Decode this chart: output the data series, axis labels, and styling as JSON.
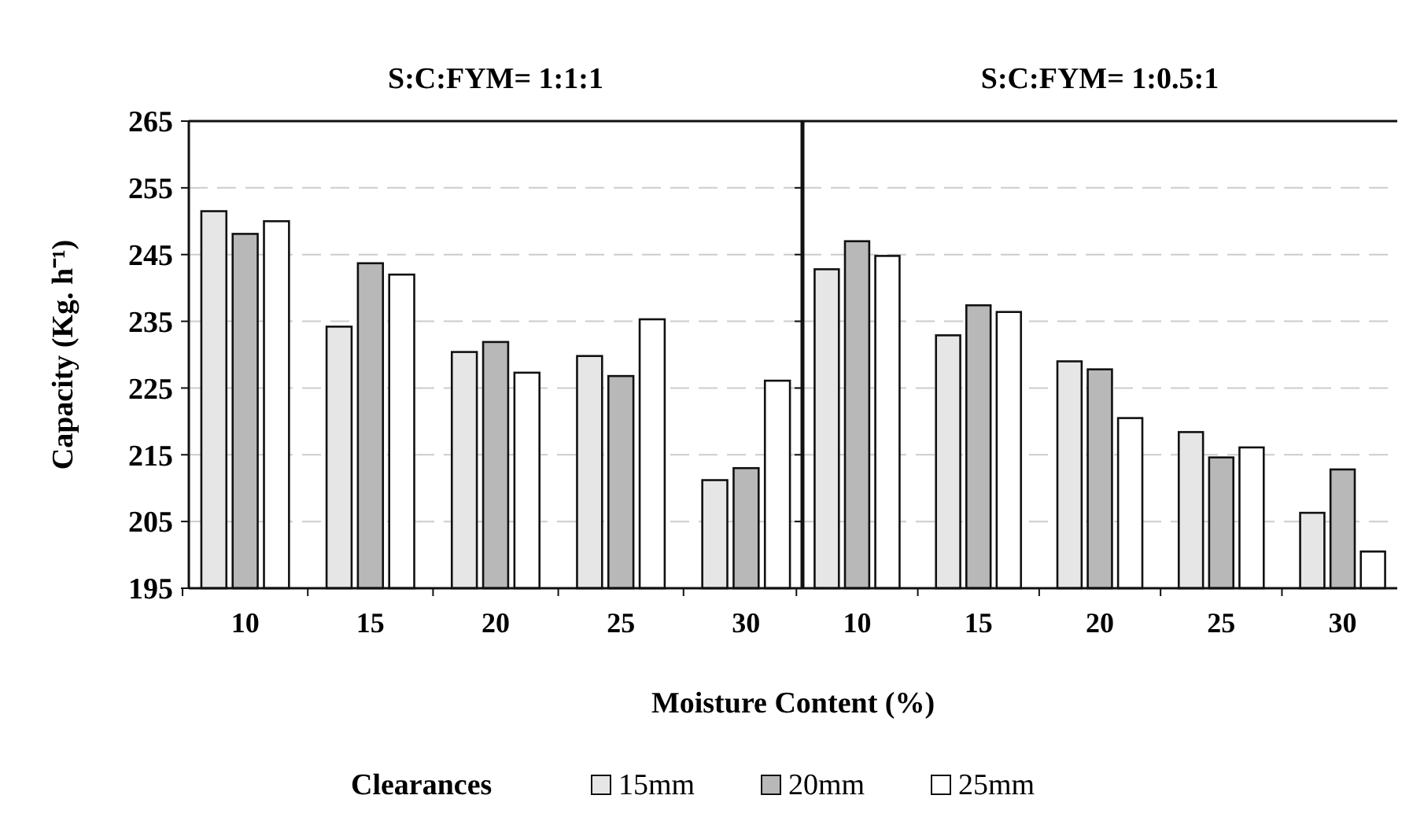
{
  "chart_data": [
    {
      "type": "bar",
      "title": "S:C:FYM= 1:1:1",
      "xlabel": "Moisture Content (%)",
      "ylabel": "Capacity  (Kg. h⁻¹)",
      "legend_title": "Clearances",
      "legend": "bottom",
      "grid": "y",
      "categories": [
        "10",
        "15",
        "20",
        "25",
        "30"
      ],
      "ylim": [
        195,
        265
      ],
      "yticks": [
        195,
        205,
        215,
        225,
        235,
        245,
        255,
        265
      ],
      "series": [
        {
          "name": "15mm",
          "color": "#e6e6e6",
          "values": [
            251.5,
            234.2,
            230.4,
            229.8,
            211.2
          ]
        },
        {
          "name": "20mm",
          "color": "#b8b8b8",
          "values": [
            248.1,
            243.7,
            231.9,
            226.8,
            213.0
          ]
        },
        {
          "name": "25mm",
          "color": "#ffffff",
          "values": [
            250.0,
            242.0,
            227.3,
            235.3,
            226.1
          ]
        }
      ]
    },
    {
      "type": "bar",
      "title": "S:C:FYM= 1:0.5:1",
      "grid": "y",
      "tick_labels": "x",
      "categories": [
        "10",
        "15",
        "20",
        "25",
        "30"
      ],
      "ylim": [
        195,
        265
      ],
      "yticks": [
        195,
        205,
        215,
        225,
        235,
        245,
        255,
        265
      ],
      "series": [
        {
          "color": "#e6e6e6",
          "values": [
            242.8,
            232.9,
            229.0,
            218.4,
            206.3
          ]
        },
        {
          "color": "#b8b8b8",
          "values": [
            247.0,
            237.4,
            227.8,
            214.6,
            212.8
          ]
        },
        {
          "color": "#ffffff",
          "values": [
            244.8,
            236.4,
            220.5,
            216.1,
            200.5
          ]
        }
      ]
    }
  ]
}
